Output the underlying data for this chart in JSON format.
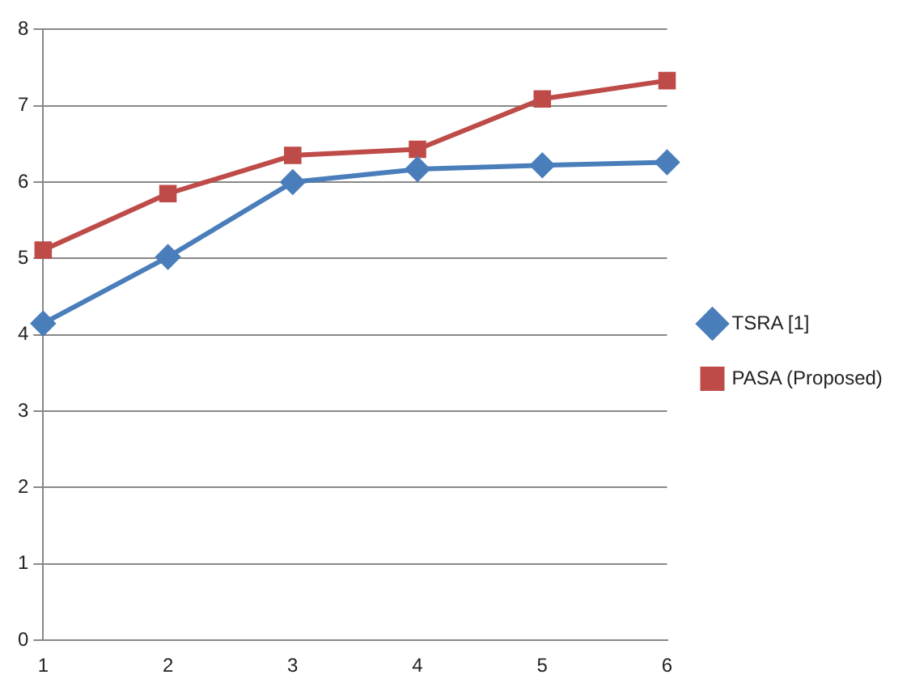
{
  "chart_data": {
    "type": "line",
    "categories": [
      "1",
      "2",
      "3",
      "4",
      "5",
      "6"
    ],
    "series": [
      {
        "name": "TSRA [1]",
        "color": "#4a7ebb",
        "marker": "diamond",
        "values": [
          4.15,
          5.02,
          6.0,
          6.17,
          6.22,
          6.26
        ]
      },
      {
        "name": "PASA (Proposed)",
        "color": "#be4b48",
        "marker": "square",
        "values": [
          5.11,
          5.85,
          6.35,
          6.43,
          7.09,
          7.33
        ]
      }
    ],
    "ylim": [
      0,
      8
    ],
    "yticks": [
      0,
      1,
      2,
      3,
      4,
      5,
      6,
      7,
      8
    ],
    "grid": "y",
    "legend": "right",
    "line_style": "solid"
  }
}
